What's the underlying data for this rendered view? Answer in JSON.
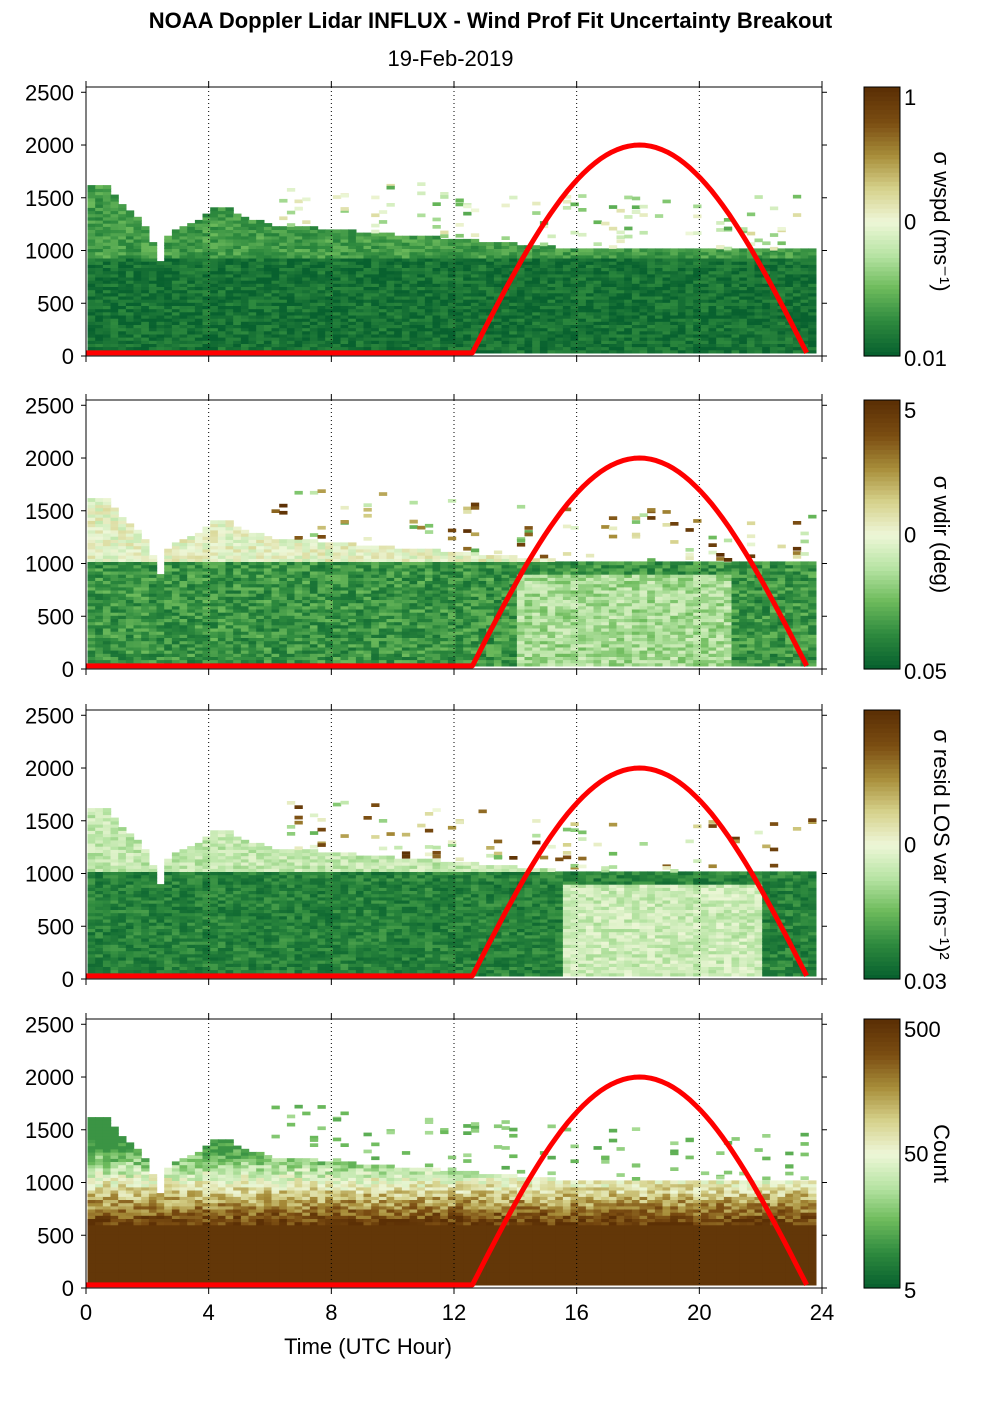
{
  "title": "NOAA Doppler Lidar INFLUX - Wind Prof Fit Uncertainty Breakout",
  "subtitle": "19-Feb-2019",
  "colors": {
    "sun_curve": "#ff0000",
    "colormap": [
      "#08612f",
      "#2e8a3e",
      "#6dbb5c",
      "#b7e4a4",
      "#eef7d8",
      "#d6d28c",
      "#a88e3a",
      "#7b4d12",
      "#5c3005"
    ]
  },
  "chart_data": [
    {
      "type": "heatmap",
      "xlabel": "",
      "ylabel": "",
      "xlim": [
        0,
        24
      ],
      "ylim": [
        0,
        2550
      ],
      "yticks": [
        "0",
        "500",
        "1000",
        "1500",
        "2000",
        "2500"
      ],
      "xticks": [
        0,
        4,
        8,
        12,
        16,
        20,
        24
      ],
      "colorbar": {
        "label": "σ wspd (ms⁻¹)",
        "ticks": [
          "1",
          "0",
          "0.01"
        ]
      },
      "sun_elevation_curve": {
        "x_start": 12.6,
        "x_peak": 18.0,
        "x_end": 23.5,
        "y_peak": 2000,
        "y_base": 30
      }
    },
    {
      "type": "heatmap",
      "xlabel": "",
      "ylabel": "",
      "xlim": [
        0,
        24
      ],
      "ylim": [
        0,
        2550
      ],
      "yticks": [
        "0",
        "500",
        "1000",
        "1500",
        "2000",
        "2500"
      ],
      "xticks": [
        0,
        4,
        8,
        12,
        16,
        20,
        24
      ],
      "colorbar": {
        "label": "σ wdir (deg)",
        "ticks": [
          "5",
          "0",
          "0.05"
        ]
      },
      "sun_elevation_curve": {
        "x_start": 12.6,
        "x_peak": 18.0,
        "x_end": 23.5,
        "y_peak": 2000,
        "y_base": 30
      }
    },
    {
      "type": "heatmap",
      "xlabel": "",
      "ylabel": "",
      "xlim": [
        0,
        24
      ],
      "ylim": [
        0,
        2550
      ],
      "yticks": [
        "0",
        "500",
        "1000",
        "1500",
        "2000",
        "2500"
      ],
      "xticks": [
        0,
        4,
        8,
        12,
        16,
        20,
        24
      ],
      "colorbar": {
        "label": "σ resid LOS var (ms⁻¹)²",
        "ticks": [
          "",
          "0",
          "0.03"
        ]
      },
      "sun_elevation_curve": {
        "x_start": 12.6,
        "x_peak": 18.0,
        "x_end": 23.5,
        "y_peak": 2000,
        "y_base": 30
      }
    },
    {
      "type": "heatmap",
      "xlabel": "Time (UTC Hour)",
      "ylabel": "",
      "xlim": [
        0,
        24
      ],
      "ylim": [
        0,
        2550
      ],
      "yticks": [
        "0",
        "500",
        "1000",
        "1500",
        "2000",
        "2500"
      ],
      "xticks": [
        0,
        4,
        8,
        12,
        16,
        20,
        24
      ],
      "xticklabels": [
        "0",
        "4",
        "8",
        "12",
        "16",
        "20",
        "24"
      ],
      "colorbar": {
        "label": "Count",
        "ticks": [
          "500",
          "50",
          "5"
        ]
      },
      "sun_elevation_curve": {
        "x_start": 12.6,
        "x_peak": 18.0,
        "x_end": 23.5,
        "y_peak": 2000,
        "y_base": 30
      }
    }
  ]
}
